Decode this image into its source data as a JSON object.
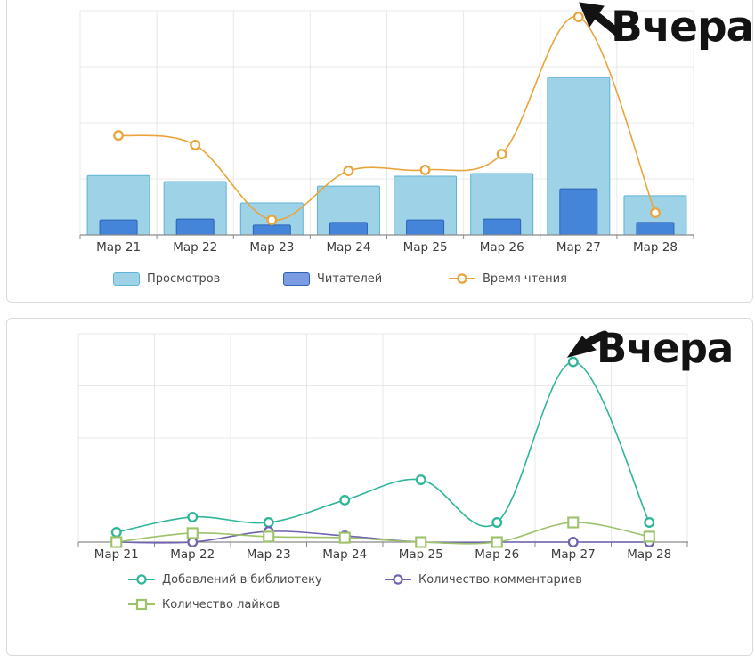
{
  "annotations": {
    "top": {
      "text": "Вчера",
      "points_to": "Мар 27"
    },
    "bottom": {
      "text": "Вчера",
      "points_to": "Мар 27"
    },
    "color": "#131313"
  },
  "ui_colors": {
    "grid": "#e8e8e8",
    "axis": "#8a8a8a",
    "tick_label": "#3c3c3c",
    "legend_text": "#4a4a4a",
    "card_border": "#dadada"
  },
  "chart_data": [
    {
      "type": "bar",
      "title": "",
      "categories": [
        "Мар 21",
        "Мар 22",
        "Мар 23",
        "Мар 24",
        "Мар 25",
        "Мар 26",
        "Мар 27",
        "Мар 28"
      ],
      "series": [
        {
          "name": "Просмотров",
          "type": "bar",
          "color": "#9ed2e6",
          "border": "#5fb3d6",
          "values": [
            26.5,
            23.8,
            14.3,
            21.8,
            26.2,
            27.4,
            70.2,
            17.5
          ]
        },
        {
          "name": "Читателей",
          "type": "bar",
          "color": "#4585d9",
          "border": "#2d62b5",
          "legend_fill": "#7b9ce2",
          "values": [
            6.7,
            7.1,
            4.4,
            5.6,
            6.7,
            7.1,
            20.6,
            5.6
          ]
        },
        {
          "name": "Время чтения",
          "type": "line",
          "color": "#e9a43b",
          "marker": "circle",
          "values": [
            44.4,
            40.1,
            6.7,
            28.6,
            29.0,
            36.1,
            97.2,
            9.9
          ]
        }
      ],
      "xlabel": "",
      "ylabel": "",
      "ylim": [
        0,
        100
      ],
      "grid": true,
      "legend_position": "bottom",
      "note": "y-axis has no visible tick labels; values are relative units where 100 = top gridline"
    },
    {
      "type": "line",
      "title": "",
      "categories": [
        "Мар 21",
        "Мар 22",
        "Мар 23",
        "Мар 24",
        "Мар 25",
        "Мар 26",
        "Мар 27",
        "Мар 28"
      ],
      "series": [
        {
          "name": "Добавлений в библиотеку",
          "type": "line",
          "color": "#2fb69a",
          "marker": "circle",
          "values": [
            4.7,
            12.0,
            9.4,
            20.1,
            29.9,
            9.4,
            86.5,
            9.4
          ]
        },
        {
          "name": "Количество комментариев",
          "type": "line",
          "color": "#6f63b2",
          "marker": "circle",
          "values": [
            0,
            0,
            5.1,
            3.0,
            0,
            0,
            0,
            0
          ]
        },
        {
          "name": "Количество лайков",
          "type": "line",
          "color": "#9cc26a",
          "marker": "square",
          "values": [
            0,
            4.3,
            2.6,
            2.1,
            0,
            0,
            9.4,
            2.6
          ]
        }
      ],
      "xlabel": "",
      "ylabel": "",
      "ylim": [
        0,
        100
      ],
      "grid": true,
      "legend_position": "bottom",
      "note": "y-axis has no visible tick labels; values are relative units where 100 = top gridline"
    }
  ]
}
